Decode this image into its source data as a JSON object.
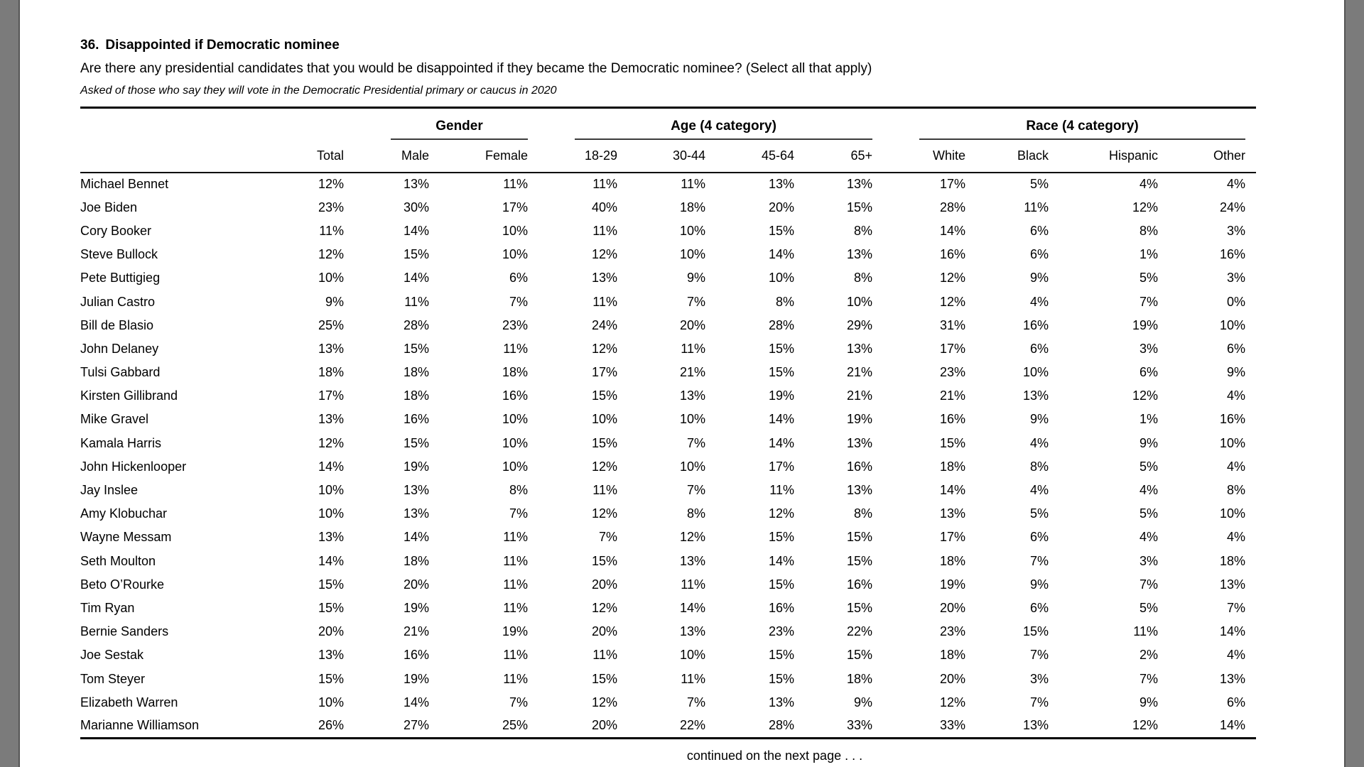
{
  "page": {
    "question_number": "36.",
    "question_title": "Disappointed if Democratic nominee",
    "question_text": "Are there any presidential candidates that you would be disappointed if they became the Democratic nominee? (Select all that apply)",
    "note": "Asked of those who say they will vote in the Democratic Presidential primary or caucus in 2020",
    "continued": "continued on the next page . . ."
  },
  "colors": {
    "page_background": "#ffffff",
    "margin_bar": "#7b7b7b",
    "text": "#000000",
    "rule": "#000000"
  },
  "table": {
    "groups": [
      {
        "label": "Gender",
        "span": 2
      },
      {
        "label": "Age (4 category)",
        "span": 4
      },
      {
        "label": "Race (4 category)",
        "span": 4
      }
    ],
    "columns": [
      "Total",
      "Male",
      "Female",
      "18-29",
      "30-44",
      "45-64",
      "65+",
      "White",
      "Black",
      "Hispanic",
      "Other"
    ],
    "rows": [
      {
        "name": "Michael Bennet",
        "values": [
          "12%",
          "13%",
          "11%",
          "11%",
          "11%",
          "13%",
          "13%",
          "17%",
          "5%",
          "4%",
          "4%"
        ]
      },
      {
        "name": "Joe Biden",
        "values": [
          "23%",
          "30%",
          "17%",
          "40%",
          "18%",
          "20%",
          "15%",
          "28%",
          "11%",
          "12%",
          "24%"
        ]
      },
      {
        "name": "Cory Booker",
        "values": [
          "11%",
          "14%",
          "10%",
          "11%",
          "10%",
          "15%",
          "8%",
          "14%",
          "6%",
          "8%",
          "3%"
        ]
      },
      {
        "name": "Steve Bullock",
        "values": [
          "12%",
          "15%",
          "10%",
          "12%",
          "10%",
          "14%",
          "13%",
          "16%",
          "6%",
          "1%",
          "16%"
        ]
      },
      {
        "name": "Pete Buttigieg",
        "values": [
          "10%",
          "14%",
          "6%",
          "13%",
          "9%",
          "10%",
          "8%",
          "12%",
          "9%",
          "5%",
          "3%"
        ]
      },
      {
        "name": "Julian Castro",
        "values": [
          "9%",
          "11%",
          "7%",
          "11%",
          "7%",
          "8%",
          "10%",
          "12%",
          "4%",
          "7%",
          "0%"
        ]
      },
      {
        "name": "Bill de Blasio",
        "values": [
          "25%",
          "28%",
          "23%",
          "24%",
          "20%",
          "28%",
          "29%",
          "31%",
          "16%",
          "19%",
          "10%"
        ]
      },
      {
        "name": "John Delaney",
        "values": [
          "13%",
          "15%",
          "11%",
          "12%",
          "11%",
          "15%",
          "13%",
          "17%",
          "6%",
          "3%",
          "6%"
        ]
      },
      {
        "name": "Tulsi Gabbard",
        "values": [
          "18%",
          "18%",
          "18%",
          "17%",
          "21%",
          "15%",
          "21%",
          "23%",
          "10%",
          "6%",
          "9%"
        ]
      },
      {
        "name": "Kirsten Gillibrand",
        "values": [
          "17%",
          "18%",
          "16%",
          "15%",
          "13%",
          "19%",
          "21%",
          "21%",
          "13%",
          "12%",
          "4%"
        ]
      },
      {
        "name": "Mike Gravel",
        "values": [
          "13%",
          "16%",
          "10%",
          "10%",
          "10%",
          "14%",
          "19%",
          "16%",
          "9%",
          "1%",
          "16%"
        ]
      },
      {
        "name": "Kamala Harris",
        "values": [
          "12%",
          "15%",
          "10%",
          "15%",
          "7%",
          "14%",
          "13%",
          "15%",
          "4%",
          "9%",
          "10%"
        ]
      },
      {
        "name": "John Hickenlooper",
        "values": [
          "14%",
          "19%",
          "10%",
          "12%",
          "10%",
          "17%",
          "16%",
          "18%",
          "8%",
          "5%",
          "4%"
        ]
      },
      {
        "name": "Jay Inslee",
        "values": [
          "10%",
          "13%",
          "8%",
          "11%",
          "7%",
          "11%",
          "13%",
          "14%",
          "4%",
          "4%",
          "8%"
        ]
      },
      {
        "name": "Amy Klobuchar",
        "values": [
          "10%",
          "13%",
          "7%",
          "12%",
          "8%",
          "12%",
          "8%",
          "13%",
          "5%",
          "5%",
          "10%"
        ]
      },
      {
        "name": "Wayne Messam",
        "values": [
          "13%",
          "14%",
          "11%",
          "7%",
          "12%",
          "15%",
          "15%",
          "17%",
          "6%",
          "4%",
          "4%"
        ]
      },
      {
        "name": "Seth Moulton",
        "values": [
          "14%",
          "18%",
          "11%",
          "15%",
          "13%",
          "14%",
          "15%",
          "18%",
          "7%",
          "3%",
          "18%"
        ]
      },
      {
        "name": "Beto O’Rourke",
        "values": [
          "15%",
          "20%",
          "11%",
          "20%",
          "11%",
          "15%",
          "16%",
          "19%",
          "9%",
          "7%",
          "13%"
        ]
      },
      {
        "name": "Tim Ryan",
        "values": [
          "15%",
          "19%",
          "11%",
          "12%",
          "14%",
          "16%",
          "15%",
          "20%",
          "6%",
          "5%",
          "7%"
        ]
      },
      {
        "name": "Bernie Sanders",
        "values": [
          "20%",
          "21%",
          "19%",
          "20%",
          "13%",
          "23%",
          "22%",
          "23%",
          "15%",
          "11%",
          "14%"
        ]
      },
      {
        "name": "Joe Sestak",
        "values": [
          "13%",
          "16%",
          "11%",
          "11%",
          "10%",
          "15%",
          "15%",
          "18%",
          "7%",
          "2%",
          "4%"
        ]
      },
      {
        "name": "Tom Steyer",
        "values": [
          "15%",
          "19%",
          "11%",
          "15%",
          "11%",
          "15%",
          "18%",
          "20%",
          "3%",
          "7%",
          "13%"
        ]
      },
      {
        "name": "Elizabeth Warren",
        "values": [
          "10%",
          "14%",
          "7%",
          "12%",
          "7%",
          "13%",
          "9%",
          "12%",
          "7%",
          "9%",
          "6%"
        ]
      },
      {
        "name": "Marianne Williamson",
        "values": [
          "26%",
          "27%",
          "25%",
          "20%",
          "22%",
          "28%",
          "33%",
          "33%",
          "13%",
          "12%",
          "14%"
        ]
      }
    ]
  }
}
